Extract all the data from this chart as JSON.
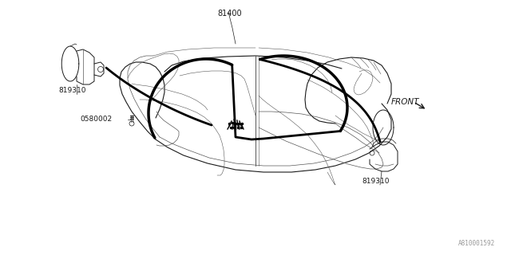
{
  "bg_color": "#ffffff",
  "line_color": "#1a1a1a",
  "thin_color": "#555555",
  "watermark": "A810001592",
  "labels": {
    "part1": "81400",
    "part2_top": "819310",
    "part2_bot": "819310",
    "part3": "0580002",
    "front": "FRONT"
  },
  "figsize": [
    6.4,
    3.2
  ],
  "dpi": 100
}
